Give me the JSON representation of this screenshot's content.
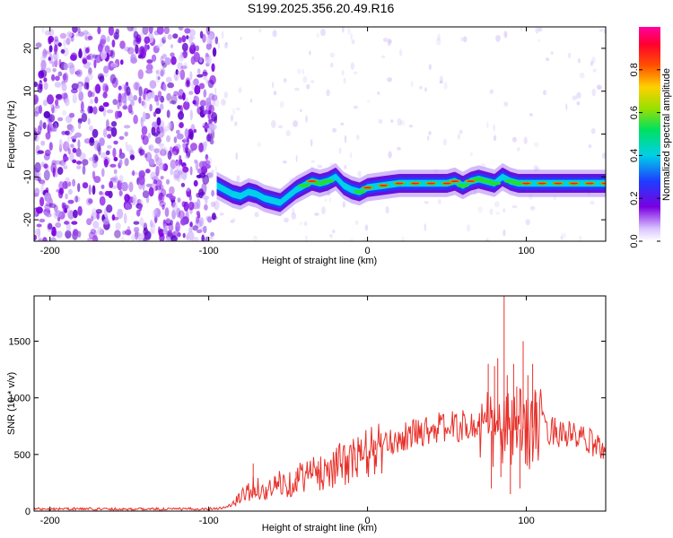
{
  "title": "S199.2025.356.20.49.R16",
  "colors": {
    "snr_line": "#e8302a",
    "heat_purple": "#7a00e0",
    "heat_blue": "#2255ff",
    "heat_cyan": "#00e5e5",
    "heat_green": "#22dd33",
    "heat_red": "#ff1a1a"
  },
  "chart_data": [
    {
      "type": "heatmap",
      "title": "",
      "xlabel": "Height of straight line (km)",
      "ylabel": "Frequency (Hz)",
      "xlim": [
        -210,
        150
      ],
      "ylim": [
        -25,
        25
      ],
      "xticks": [
        -200,
        -100,
        0,
        100
      ],
      "xtick_labels": [
        "-200",
        "-100",
        "0",
        "100"
      ],
      "yticks": [
        -20,
        -10,
        0,
        10,
        20
      ],
      "ytick_labels": [
        "-20",
        "-10",
        "0",
        "10",
        "20"
      ],
      "colorbar": {
        "label": "Normalized spectral amplitude",
        "range": [
          0,
          1
        ],
        "ticks": [
          0.0,
          0.2,
          0.4,
          0.6,
          0.8
        ],
        "tick_labels": [
          "0.0",
          "0.2",
          "0.4",
          "0.6",
          "0.8"
        ]
      },
      "ridge": {
        "x": [
          -95,
          -90,
          -85,
          -80,
          -75,
          -70,
          -65,
          -60,
          -55,
          -50,
          -45,
          -40,
          -35,
          -30,
          -25,
          -20,
          -15,
          -10,
          -5,
          0,
          10,
          20,
          30,
          40,
          50,
          55,
          60,
          65,
          70,
          75,
          80,
          85,
          90,
          95,
          100,
          110,
          120,
          130,
          140,
          150
        ],
        "freq": [
          -12,
          -13,
          -14,
          -14.5,
          -13.5,
          -14,
          -15,
          -15.5,
          -16,
          -14.5,
          -13,
          -12,
          -11,
          -11.5,
          -11,
          -10,
          -12,
          -13,
          -13.5,
          -12.5,
          -12,
          -11.5,
          -11.5,
          -11.5,
          -11.5,
          -11,
          -12,
          -11,
          -10.5,
          -11,
          -11.5,
          -10,
          -11,
          -11.5,
          -11.5,
          -11.5,
          -11.5,
          -11.5,
          -11.5,
          -11.5
        ],
        "amp": [
          0.25,
          0.25,
          0.3,
          0.3,
          0.35,
          0.35,
          0.4,
          0.35,
          0.3,
          0.35,
          0.45,
          0.6,
          0.85,
          0.7,
          0.6,
          0.5,
          0.5,
          0.55,
          0.6,
          0.8,
          0.85,
          0.9,
          0.95,
          0.9,
          0.9,
          0.85,
          0.7,
          0.85,
          0.7,
          0.75,
          0.6,
          0.55,
          0.6,
          0.7,
          0.9,
          0.95,
          0.95,
          0.9,
          0.9,
          0.85
        ]
      }
    },
    {
      "type": "line",
      "title": "",
      "xlabel": "Height of straight line (km)",
      "ylabel": "SNR (10 * v/v)",
      "xlim": [
        -210,
        150
      ],
      "ylim": [
        0,
        1900
      ],
      "xticks": [
        -200,
        -100,
        0,
        100
      ],
      "xtick_labels": [
        "-200",
        "-100",
        "0",
        "100"
      ],
      "yticks": [
        0,
        500,
        1000,
        1500
      ],
      "ytick_labels": [
        "0",
        "500",
        "1000",
        "1500"
      ],
      "series": [
        {
          "name": "SNR",
          "x": [
            -210,
            -180,
            -150,
            -120,
            -100,
            -90,
            -85,
            -80,
            -75,
            -70,
            -65,
            -60,
            -55,
            -50,
            -45,
            -40,
            -35,
            -30,
            -25,
            -20,
            -15,
            -10,
            -5,
            0,
            10,
            20,
            30,
            40,
            50,
            60,
            70,
            75,
            80,
            85,
            90,
            95,
            100,
            105,
            110,
            120,
            130,
            140,
            150
          ],
          "y": [
            20,
            20,
            18,
            18,
            20,
            30,
            60,
            120,
            180,
            220,
            160,
            200,
            260,
            230,
            280,
            320,
            330,
            330,
            380,
            400,
            420,
            440,
            470,
            510,
            570,
            640,
            690,
            730,
            740,
            750,
            740,
            720,
            700,
            700,
            710,
            720,
            730,
            740,
            740,
            700,
            660,
            610,
            540
          ]
        }
      ],
      "spikes": {
        "x": [
          -72,
          -58,
          -45,
          -36,
          -31,
          -20,
          -8,
          5,
          76,
          78,
          80,
          82,
          84,
          86,
          88,
          90,
          92,
          94,
          96,
          98,
          101,
          104,
          106
        ],
        "y": [
          420,
          300,
          350,
          400,
          440,
          520,
          560,
          620,
          1300,
          200,
          1280,
          1350,
          300,
          1900,
          1200,
          150,
          1300,
          1100,
          200,
          1500,
          1200,
          1300,
          1050
        ]
      }
    }
  ]
}
